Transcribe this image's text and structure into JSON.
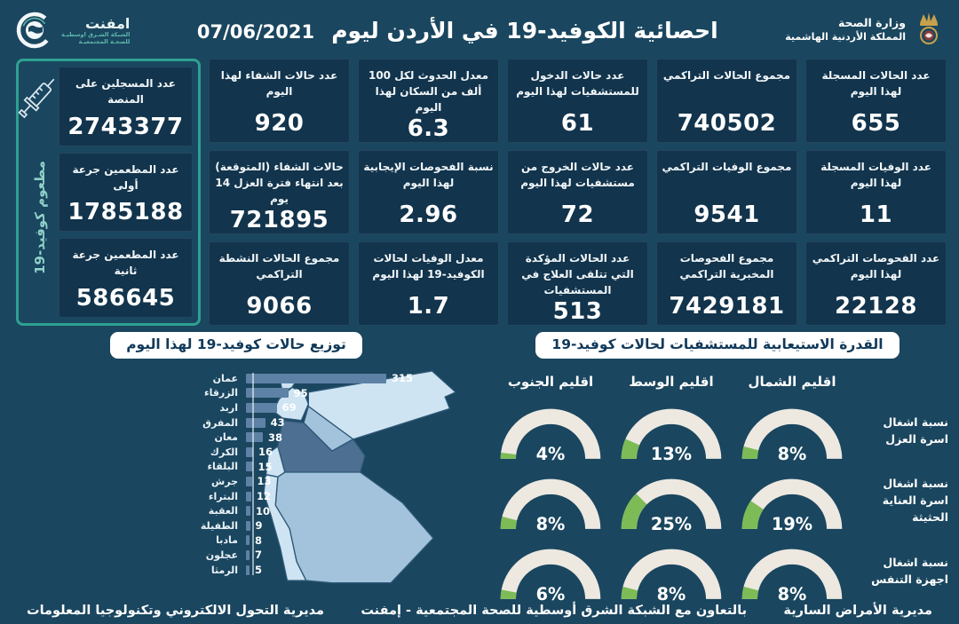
{
  "header": {
    "title": "احصائية الكوفيد-19 في الأردن ليوم",
    "date": "07/06/2021",
    "emphnet": {
      "name": "امفنت",
      "sub1": "الشبكة الشـرق اوسطيـة",
      "sub2": "للصحـة المجتمعيـة"
    },
    "moh": {
      "line1": "وزارة الصحة",
      "line2": "المملكة الأردنية الهاشمية"
    }
  },
  "stats": {
    "columns": [
      {
        "cards": [
          {
            "label": "عدد الحالات المسجلة لهذا اليوم",
            "value": "655"
          },
          {
            "label": "عدد الوفيات المسجلة لهذا اليوم",
            "value": "11"
          },
          {
            "label": "عدد الفحوصات التراكمي لهذا اليوم",
            "value": "22128"
          }
        ]
      },
      {
        "cards": [
          {
            "label": "مجموع الحالات التراكمي",
            "value": "740502"
          },
          {
            "label": "مجموع الوفيات التراكمي",
            "value": "9541"
          },
          {
            "label": "مجموع الفحوصات المخبرية التراكمي",
            "value": "7429181"
          }
        ]
      },
      {
        "cards": [
          {
            "label": "عدد حالات الدخول للمستشفيات لهذا اليوم",
            "value": "61"
          },
          {
            "label": "عدد حالات الخروج من مستشفيات لهذا اليوم",
            "value": "72"
          },
          {
            "label": "عدد الحالات المؤكدة التي تتلقى العلاج في المستشفيات",
            "value": "513"
          }
        ]
      },
      {
        "cards": [
          {
            "label": "معدل الحدوث لكل 100 ألف من السكان لهذا اليوم",
            "value": "6.3"
          },
          {
            "label": "نسبة الفحوصات الإيجابية لهذا اليوم",
            "value": "2.96"
          },
          {
            "label": "معدل الوفيات لحالات الكوفيد-19 لهذا اليوم",
            "value": "1.7"
          }
        ]
      },
      {
        "cards": [
          {
            "label": "عدد حالات الشفاء لهذا اليوم",
            "value": "920"
          },
          {
            "label": "حالات الشفاء (المتوقعة) بعد انتهاء فترة العزل 14 يوم",
            "value": "721895"
          },
          {
            "label": "مجموع الحالات النشطة التراكمي",
            "value": "9066"
          }
        ]
      }
    ]
  },
  "vaccination": {
    "side_label": "مطعوم كوفيد-19",
    "cards": [
      {
        "label": "عدد المسجلين على المنصة",
        "value": "2743377"
      },
      {
        "label": "عدد المطعمين جرعة أولى",
        "value": "1785188"
      },
      {
        "label": "عدد المطعمين جرعة ثانية",
        "value": "586645"
      }
    ]
  },
  "chart_data": [
    {
      "type": "bar",
      "title": "توزيع حالات كوفيد-19 لهذا اليوم",
      "orientation": "horizontal",
      "categories": [
        "عمان",
        "الزرقاء",
        "اربد",
        "المفرق",
        "معان",
        "الكرك",
        "البلقاء",
        "جرش",
        "البتراء",
        "العقبة",
        "الطفيلة",
        "مادبا",
        "عجلون",
        "الرمثا"
      ],
      "values": [
        315,
        95,
        69,
        43,
        38,
        16,
        15,
        13,
        12,
        10,
        9,
        8,
        7,
        5
      ],
      "xlim": [
        0,
        315
      ],
      "xlabel": "",
      "ylabel": ""
    },
    {
      "type": "gauge",
      "title": "القدرة الاستيعابية للمستشفيات لحالات كوفيد-19",
      "regions": [
        "اقليم الشمال",
        "اقليم الوسط",
        "اقليم الجنوب"
      ],
      "rows": [
        {
          "label": "نسبة اشغال اسرة العزل",
          "values": [
            8,
            13,
            4
          ]
        },
        {
          "label": "نسبة اشغال اسرة العناية الحثيثة",
          "values": [
            19,
            25,
            8
          ]
        },
        {
          "label": "نسبة اشغال اجهزة التنفس",
          "values": [
            8,
            8,
            6
          ]
        }
      ],
      "unit": "%"
    }
  ],
  "footer": {
    "right": "مديرية الأمراض السارية",
    "center": "بالتعاون مع الشبكة الشرق أوسطية للصحة المجتمعية - إمفنت",
    "left": "مديرية التحول الالكتروني وتكنولوجيا المعلومات"
  },
  "colors": {
    "background": "#1A465F",
    "card": "#12344C",
    "teal_border": "#2EA191",
    "gauge_green": "#7DBB57",
    "gauge_track": "#EDE8E0",
    "bar": "#5E82A6",
    "pill_text": "#10395A",
    "map_light": "#CFE4F2",
    "map_mid": "#A3C3DC",
    "map_dark": "#4C6F92",
    "accent_text": "#8FD0C8"
  }
}
